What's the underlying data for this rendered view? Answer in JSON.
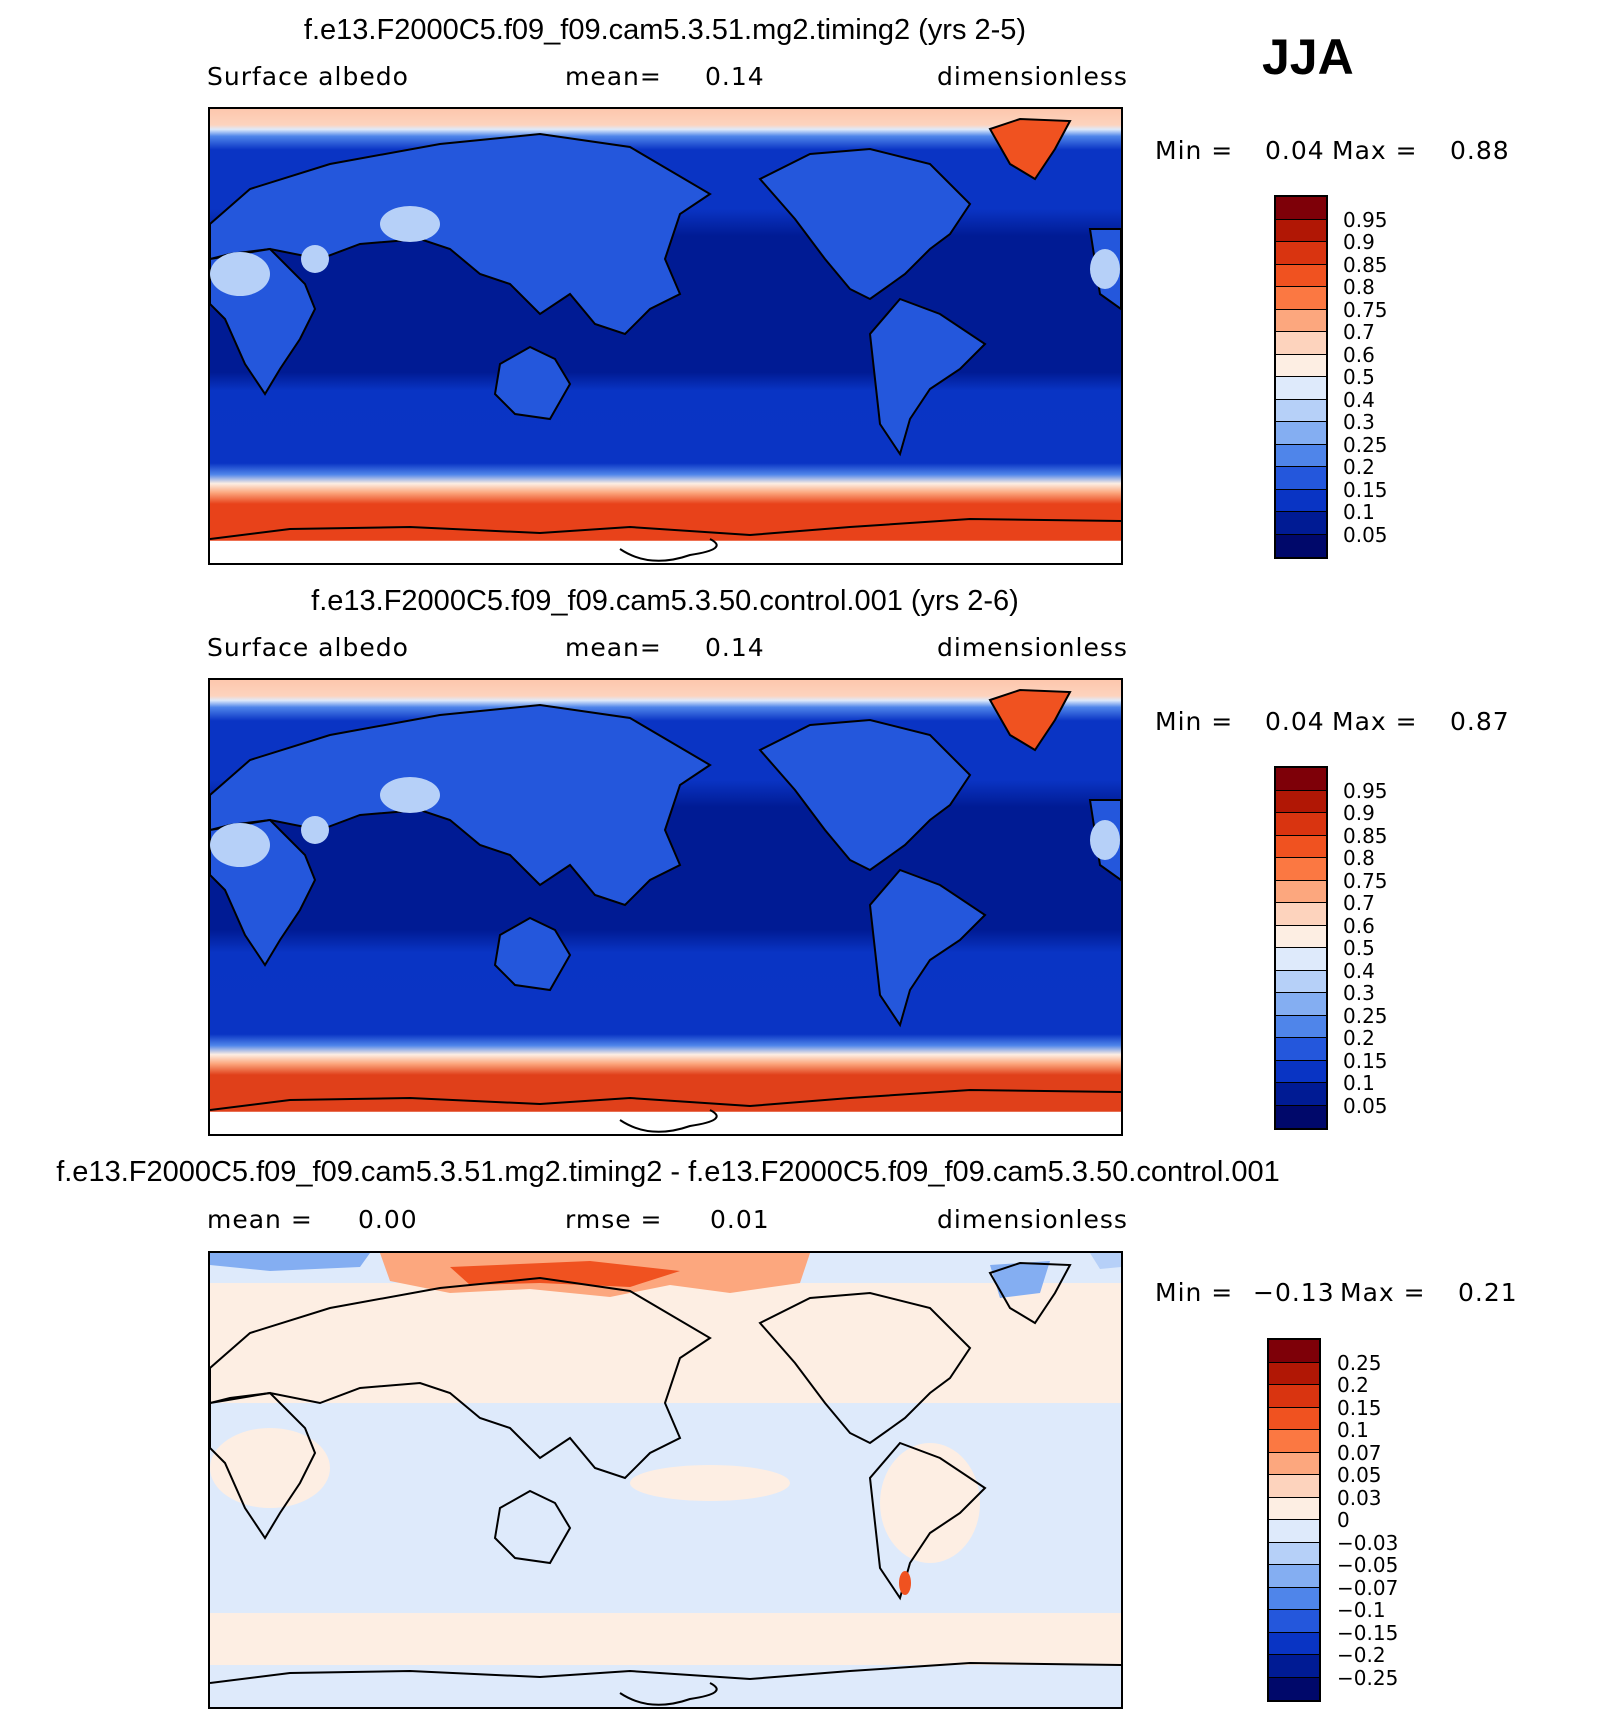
{
  "season": "JJA",
  "panels": [
    {
      "title": "f.e13.F2000C5.f09_f09.cam5.3.51.mg2.timing2 (yrs 2-5)",
      "left_label": "Surface albedo",
      "center_label": "mean=",
      "center_value": "0.14",
      "right_label": "dimensionless",
      "min_label": "Min =",
      "min_value": "0.04",
      "max_label": "Max =",
      "max_value": "0.88",
      "colorbar_labels": [
        "0.95",
        "0.9",
        "0.85",
        "0.8",
        "0.75",
        "0.7",
        "0.6",
        "0.5",
        "0.4",
        "0.3",
        "0.25",
        "0.2",
        "0.15",
        "0.1",
        "0.05"
      ],
      "colorbar_colors": [
        "#7e0008",
        "#b11705",
        "#d93410",
        "#f05220",
        "#fb7842",
        "#fca77e",
        "#fdd3bd",
        "#fdeee3",
        "#deeafb",
        "#b6d0f8",
        "#84aef2",
        "#4f85ea",
        "#2457dc",
        "#0934c4",
        "#001b94",
        "#00086a"
      ]
    },
    {
      "title": "f.e13.F2000C5.f09_f09.cam5.3.50.control.001 (yrs 2-6)",
      "left_label": "Surface albedo",
      "center_label": "mean=",
      "center_value": "0.14",
      "right_label": "dimensionless",
      "min_label": "Min =",
      "min_value": "0.04",
      "max_label": "Max =",
      "max_value": "0.87",
      "colorbar_labels": [
        "0.95",
        "0.9",
        "0.85",
        "0.8",
        "0.75",
        "0.7",
        "0.6",
        "0.5",
        "0.4",
        "0.3",
        "0.25",
        "0.2",
        "0.15",
        "0.1",
        "0.05"
      ],
      "colorbar_colors": [
        "#7e0008",
        "#b11705",
        "#d93410",
        "#f05220",
        "#fb7842",
        "#fca77e",
        "#fdd3bd",
        "#fdeee3",
        "#deeafb",
        "#b6d0f8",
        "#84aef2",
        "#4f85ea",
        "#2457dc",
        "#0934c4",
        "#001b94",
        "#00086a"
      ]
    },
    {
      "title": "f.e13.F2000C5.f09_f09.cam5.3.51.mg2.timing2 - f.e13.F2000C5.f09_f09.cam5.3.50.control.001",
      "left_label": "mean =",
      "left_value": "0.00",
      "center_label": "rmse =",
      "center_value": "0.01",
      "right_label": "dimensionless",
      "min_label": "Min =",
      "min_value": "−0.13",
      "max_label": "Max =",
      "max_value": "0.21",
      "colorbar_labels": [
        "0.25",
        "0.2",
        "0.15",
        "0.1",
        "0.07",
        "0.05",
        "0.03",
        "0",
        "−0.03",
        "−0.05",
        "−0.07",
        "−0.1",
        "−0.15",
        "−0.2",
        "−0.25"
      ],
      "colorbar_colors": [
        "#7e0008",
        "#b11705",
        "#d93410",
        "#f05220",
        "#fb7842",
        "#fca77e",
        "#fdd3bd",
        "#fdeee3",
        "#deeafb",
        "#b6d0f8",
        "#84aef2",
        "#4f85ea",
        "#2457dc",
        "#0934c4",
        "#001b94",
        "#00086a"
      ]
    }
  ]
}
